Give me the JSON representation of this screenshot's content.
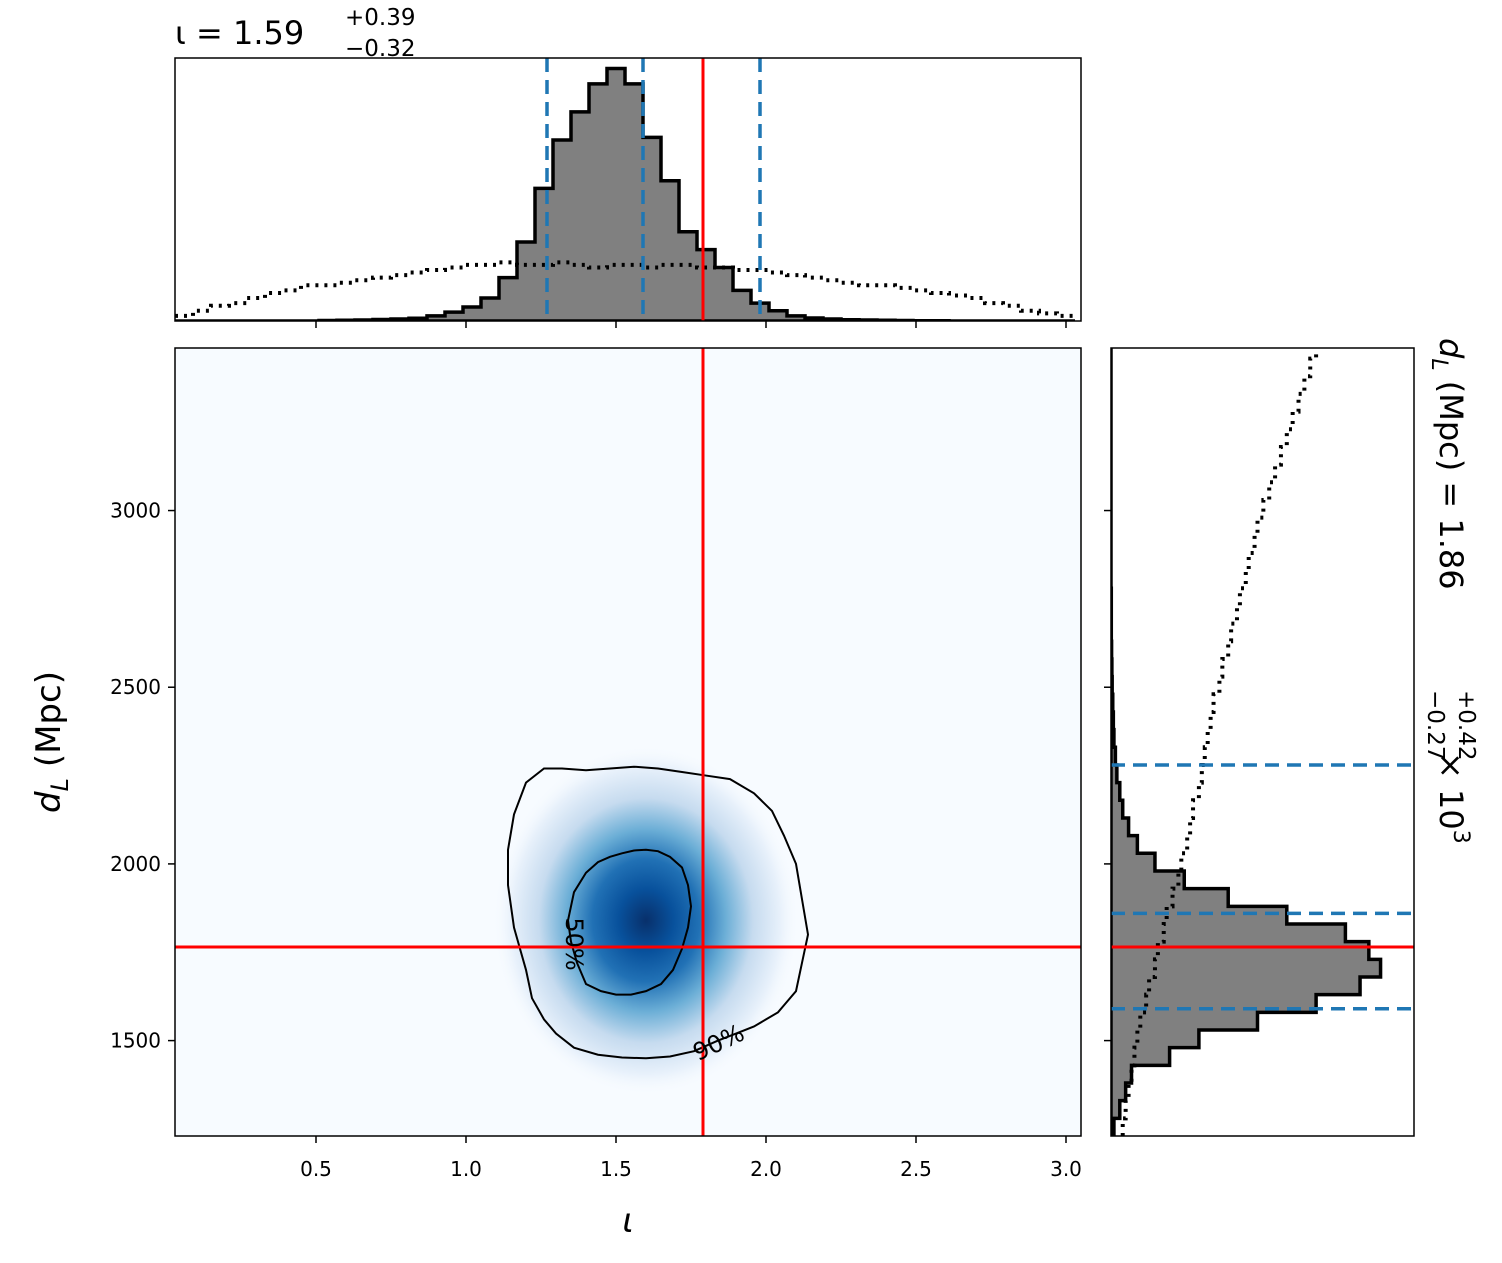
{
  "chart_data": {
    "type": "corner",
    "parameters": [
      "ι",
      "d_L"
    ],
    "x_axis": {
      "label": "ι",
      "lim": [
        0.03,
        3.05
      ],
      "ticks": [
        0.5,
        1.0,
        1.5,
        2.0,
        2.5,
        3.0
      ],
      "tick_labels": [
        "0.5",
        "1.0",
        "1.5",
        "2.0",
        "2.5",
        "3.0"
      ]
    },
    "y_axis": {
      "label_main": "d",
      "label_sub": "L",
      "label_unit": " (Mpc)",
      "lim": [
        1230,
        3460
      ],
      "ticks": [
        1500,
        2000,
        2500,
        3000
      ],
      "tick_labels": [
        "1500",
        "2000",
        "2500",
        "3000"
      ]
    },
    "iota_title": {
      "symbol": "ι",
      "eq": " = 1.59",
      "plus": "+0.39",
      "minus": "−0.32"
    },
    "dl_title": {
      "main": "d",
      "sub": "L",
      "mid": " (Mpc) = 1.86",
      "plus": "+0.42",
      "minus": "−0.27",
      "tail": " × 10",
      "exp": "3"
    },
    "truth": {
      "iota": 1.79,
      "dL": 1765
    },
    "iota_quantiles": [
      1.27,
      1.59,
      1.98
    ],
    "dL_quantiles": [
      1590,
      1860,
      2280
    ],
    "iota_hist": {
      "edges_start": 0.03,
      "bin_width": 0.06,
      "posterior": [
        0.0,
        0.0,
        0.0,
        0.0,
        0.0,
        0.0,
        0.0,
        0.0,
        0.002,
        0.003,
        0.004,
        0.006,
        0.008,
        0.011,
        0.02,
        0.035,
        0.055,
        0.09,
        0.17,
        0.31,
        0.52,
        0.71,
        0.82,
        0.93,
        0.99,
        0.93,
        0.72,
        0.55,
        0.35,
        0.28,
        0.21,
        0.12,
        0.07,
        0.04,
        0.02,
        0.012,
        0.008,
        0.005,
        0.004,
        0.003,
        0.002,
        0.001,
        0.001,
        0.0,
        0.0,
        0.0,
        0.0,
        0.0,
        0.0,
        0.0
      ],
      "prior": [
        0.02,
        0.04,
        0.06,
        0.07,
        0.09,
        0.11,
        0.12,
        0.14,
        0.14,
        0.15,
        0.16,
        0.17,
        0.18,
        0.19,
        0.2,
        0.21,
        0.22,
        0.22,
        0.23,
        0.22,
        0.22,
        0.23,
        0.22,
        0.21,
        0.22,
        0.22,
        0.21,
        0.22,
        0.22,
        0.21,
        0.21,
        0.2,
        0.2,
        0.19,
        0.18,
        0.17,
        0.16,
        0.15,
        0.14,
        0.14,
        0.13,
        0.12,
        0.11,
        0.1,
        0.09,
        0.07,
        0.06,
        0.04,
        0.03,
        0.02
      ],
      "ymax": 1.0
    },
    "dL_hist": {
      "edges_start": 1230,
      "bin_width": 50,
      "posterior": [
        0.01,
        0.03,
        0.05,
        0.07,
        0.2,
        0.3,
        0.5,
        0.7,
        0.85,
        0.92,
        0.88,
        0.8,
        0.6,
        0.4,
        0.25,
        0.15,
        0.09,
        0.06,
        0.04,
        0.03,
        0.02,
        0.015,
        0.01,
        0.008,
        0.006,
        0.004,
        0.003,
        0.002,
        0.001,
        0.001,
        0.001,
        0.0,
        0.0,
        0.0,
        0.0,
        0.0,
        0.0,
        0.0,
        0.0,
        0.0,
        0.0,
        0.0,
        0.0,
        0.0,
        0.0
      ],
      "prior": [
        0.04,
        0.05,
        0.06,
        0.07,
        0.08,
        0.09,
        0.1,
        0.12,
        0.13,
        0.15,
        0.16,
        0.18,
        0.19,
        0.21,
        0.23,
        0.24,
        0.26,
        0.27,
        0.28,
        0.3,
        0.31,
        0.32,
        0.33,
        0.34,
        0.35,
        0.37,
        0.38,
        0.4,
        0.41,
        0.43,
        0.44,
        0.46,
        0.47,
        0.49,
        0.5,
        0.52,
        0.54,
        0.56,
        0.58,
        0.6,
        0.62,
        0.64,
        0.66,
        0.68,
        0.7
      ],
      "xmax": 1.0
    },
    "kde_2d": {
      "center_iota": 1.6,
      "center_dL": 1840,
      "sigma_iota": 0.17,
      "sigma_dL": 165
    },
    "contours": [
      {
        "level": "50%",
        "iota": [
          1.34,
          1.36,
          1.4,
          1.44,
          1.48,
          1.52,
          1.56,
          1.6,
          1.64,
          1.68,
          1.72,
          1.74,
          1.75,
          1.74,
          1.72,
          1.69,
          1.65,
          1.6,
          1.55,
          1.5,
          1.45,
          1.4,
          1.37,
          1.35,
          1.34
        ],
        "dL": [
          1840,
          1920,
          1975,
          2005,
          2020,
          2030,
          2038,
          2040,
          2036,
          2020,
          1990,
          1940,
          1880,
          1820,
          1760,
          1700,
          1660,
          1640,
          1630,
          1630,
          1640,
          1660,
          1720,
          1780,
          1840
        ]
      },
      {
        "level": "90%",
        "iota": [
          1.14,
          1.14,
          1.16,
          1.2,
          1.26,
          1.32,
          1.4,
          1.48,
          1.56,
          1.64,
          1.72,
          1.8,
          1.88,
          1.96,
          2.02,
          2.06,
          2.1,
          2.12,
          2.14,
          2.12,
          2.1,
          2.06,
          2.04,
          2.0,
          1.96,
          1.9,
          1.84,
          1.76,
          1.68,
          1.6,
          1.52,
          1.44,
          1.36,
          1.3,
          1.26,
          1.22,
          1.2,
          1.18,
          1.16,
          1.14
        ],
        "dL": [
          1940,
          2040,
          2140,
          2230,
          2270,
          2270,
          2265,
          2270,
          2275,
          2270,
          2260,
          2250,
          2240,
          2200,
          2150,
          2080,
          2000,
          1900,
          1800,
          1720,
          1640,
          1600,
          1580,
          1560,
          1540,
          1520,
          1500,
          1470,
          1455,
          1450,
          1452,
          1460,
          1480,
          1520,
          1560,
          1620,
          1700,
          1760,
          1820,
          1940
        ]
      }
    ],
    "contour_labels": [
      "50%",
      "90%"
    ],
    "colors": {
      "posterior_fill": "#808080",
      "truth": "#ff0000",
      "quantile": "#1f77b4",
      "kde_map": [
        "#f7fbff",
        "#08306b"
      ]
    }
  }
}
